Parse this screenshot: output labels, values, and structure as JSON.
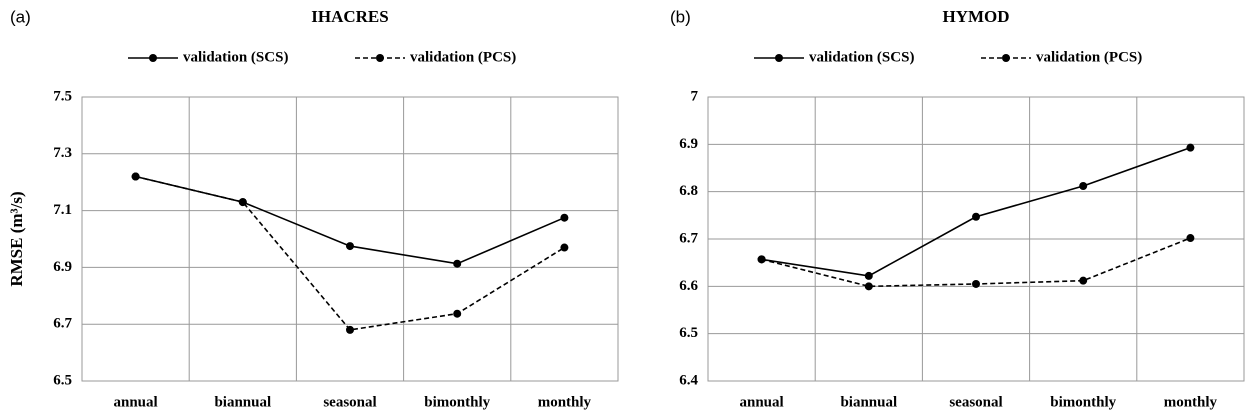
{
  "chart_data": [
    {
      "type": "line",
      "label": "(a)",
      "title": "IHACRES",
      "ylabel": "RMSE (m³/s)",
      "categories": [
        "annual",
        "biannual",
        "seasonal",
        "bimonthly",
        "monthly"
      ],
      "series": [
        {
          "name": "validation (SCS)",
          "color": "#000000",
          "linestyle": "solid",
          "values": [
            7.22,
            7.13,
            6.975,
            6.913,
            7.075
          ]
        },
        {
          "name": "validation (PCS)",
          "color": "#000000",
          "linestyle": "dashed",
          "values": [
            7.22,
            7.13,
            6.68,
            6.737,
            6.97
          ]
        }
      ],
      "ylim": [
        6.5,
        7.5
      ],
      "yticks": [
        7.5,
        7.3,
        7.1,
        6.9,
        6.7,
        6.5
      ],
      "grid": true,
      "legend": "top"
    },
    {
      "type": "line",
      "label": "(b)",
      "title": "HYMOD",
      "categories": [
        "annual",
        "biannual",
        "seasonal",
        "bimonthly",
        "monthly"
      ],
      "series": [
        {
          "name": "validation (SCS)",
          "color": "#000000",
          "linestyle": "solid",
          "values": [
            6.657,
            6.622,
            6.747,
            6.812,
            6.893
          ]
        },
        {
          "name": "validation (PCS)",
          "color": "#000000",
          "linestyle": "dashed",
          "values": [
            6.657,
            6.6,
            6.605,
            6.612,
            6.702
          ]
        }
      ],
      "ylim": [
        6.4,
        7
      ],
      "yticks": [
        7,
        6.9,
        6.8,
        6.7,
        6.6,
        6.5,
        6.4
      ],
      "grid": true,
      "legend": "top"
    }
  ]
}
